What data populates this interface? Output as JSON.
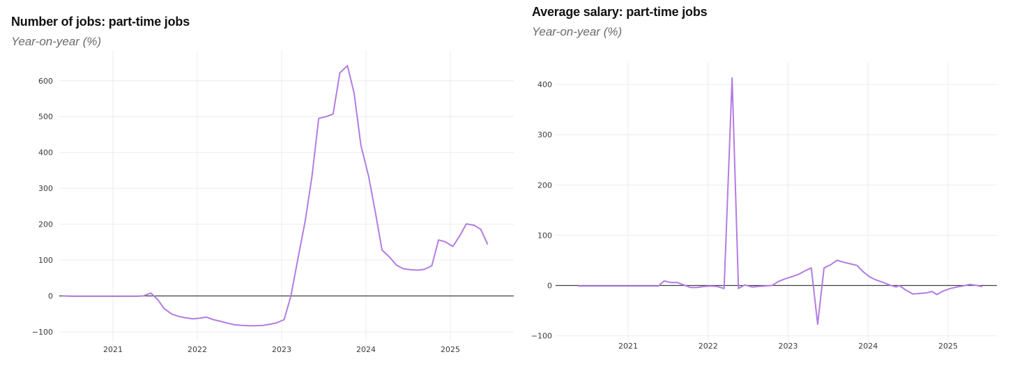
{
  "page": {
    "background": "#ffffff"
  },
  "style": {
    "grid_color": "#ececec",
    "zero_line_color": "#3f3f3f",
    "tick_label_color": "#3a3a3a",
    "title_color": "#121212",
    "subtitle_color": "#6b6b6b"
  },
  "chart_data": [
    {
      "type": "line",
      "title": "Number of jobs: part-time jobs",
      "subtitle": "Year-on-year (%)",
      "xlabel": "",
      "ylabel": "",
      "grid": true,
      "zero_line": true,
      "legend": "none",
      "line_color": "#b27ce2",
      "xlim": [
        2020.364,
        2025.752
      ],
      "ylim": [
        -127.3,
        685.1
      ],
      "x_axis": {
        "ticks": [
          {
            "v": 2021,
            "label": "2021"
          },
          {
            "v": 2022,
            "label": "2022"
          },
          {
            "v": 2023,
            "label": "2023"
          },
          {
            "v": 2024,
            "label": "2024"
          },
          {
            "v": 2025,
            "label": "2025"
          }
        ]
      },
      "y_axis": {
        "ticks": [
          {
            "v": 600,
            "label": "600"
          },
          {
            "v": 500,
            "label": "500"
          },
          {
            "v": 400,
            "label": "400"
          },
          {
            "v": 300,
            "label": "300"
          },
          {
            "v": 200,
            "label": "200"
          },
          {
            "v": 100,
            "label": "100"
          },
          {
            "v": 0,
            "label": "0"
          },
          {
            "v": -100,
            "label": "−100"
          }
        ]
      },
      "series": [
        {
          "name": "Number of part-time jobs, year-on-year %",
          "points": [
            [
              2020.41,
              0
            ],
            [
              2020.53,
              -1
            ],
            [
              2020.62,
              -1
            ],
            [
              2020.7,
              -1
            ],
            [
              2020.78,
              -1
            ],
            [
              2020.86,
              -1
            ],
            [
              2020.95,
              -1
            ],
            [
              2021.03,
              -1
            ],
            [
              2021.11,
              -1
            ],
            [
              2021.2,
              -1
            ],
            [
              2021.28,
              -1
            ],
            [
              2021.36,
              0
            ],
            [
              2021.45,
              8
            ],
            [
              2021.53,
              -10
            ],
            [
              2021.61,
              -36
            ],
            [
              2021.7,
              -51
            ],
            [
              2021.78,
              -57
            ],
            [
              2021.86,
              -61
            ],
            [
              2021.95,
              -64
            ],
            [
              2022.03,
              -62
            ],
            [
              2022.11,
              -59
            ],
            [
              2022.19,
              -66
            ],
            [
              2022.28,
              -71
            ],
            [
              2022.36,
              -76
            ],
            [
              2022.44,
              -80
            ],
            [
              2022.53,
              -82
            ],
            [
              2022.61,
              -83
            ],
            [
              2022.69,
              -83
            ],
            [
              2022.78,
              -82
            ],
            [
              2022.86,
              -79
            ],
            [
              2022.94,
              -75
            ],
            [
              2023.03,
              -66
            ],
            [
              2023.11,
              0
            ],
            [
              2023.19,
              100
            ],
            [
              2023.28,
              210
            ],
            [
              2023.36,
              333
            ],
            [
              2023.44,
              495
            ],
            [
              2023.53,
              500
            ],
            [
              2023.61,
              507
            ],
            [
              2023.69,
              622
            ],
            [
              2023.78,
              642
            ],
            [
              2023.86,
              565
            ],
            [
              2023.94,
              420
            ],
            [
              2024.03,
              335
            ],
            [
              2024.11,
              235
            ],
            [
              2024.19,
              128
            ],
            [
              2024.28,
              108
            ],
            [
              2024.36,
              86
            ],
            [
              2024.44,
              76
            ],
            [
              2024.53,
              73
            ],
            [
              2024.61,
              72
            ],
            [
              2024.69,
              74
            ],
            [
              2024.78,
              84
            ],
            [
              2024.86,
              156
            ],
            [
              2024.94,
              151
            ],
            [
              2025.03,
              138
            ],
            [
              2025.11,
              167
            ],
            [
              2025.19,
              201
            ],
            [
              2025.28,
              197
            ],
            [
              2025.36,
              186
            ],
            [
              2025.44,
              145
            ]
          ]
        }
      ]
    },
    {
      "type": "line",
      "title": "Average salary: part-time jobs",
      "subtitle": "Year-on-year (%)",
      "xlabel": "",
      "ylabel": "",
      "grid": true,
      "zero_line": true,
      "legend": "none",
      "line_color": "#b27ce2",
      "xlim": [
        2020.094,
        2025.61
      ],
      "ylim": [
        -132.5,
        446
      ],
      "x_axis": {
        "ticks": [
          {
            "v": 2021,
            "label": "2021"
          },
          {
            "v": 2022,
            "label": "2022"
          },
          {
            "v": 2023,
            "label": "2023"
          },
          {
            "v": 2024,
            "label": "2024"
          },
          {
            "v": 2025,
            "label": "2025"
          }
        ]
      },
      "y_axis": {
        "ticks": [
          {
            "v": 400,
            "label": "400"
          },
          {
            "v": 300,
            "label": "300"
          },
          {
            "v": 200,
            "label": "200"
          },
          {
            "v": 100,
            "label": "100"
          },
          {
            "v": 0,
            "label": "0"
          },
          {
            "v": -100,
            "label": "−100"
          }
        ]
      },
      "series": [
        {
          "name": "Average salary of part-time jobs, year-on-year %",
          "points": [
            [
              2020.38,
              -1
            ],
            [
              2020.5,
              -1
            ],
            [
              2020.6,
              -1
            ],
            [
              2020.7,
              -1
            ],
            [
              2020.8,
              -1
            ],
            [
              2020.9,
              -1
            ],
            [
              2021.0,
              -1
            ],
            [
              2021.1,
              -1
            ],
            [
              2021.2,
              -1
            ],
            [
              2021.3,
              -1
            ],
            [
              2021.38,
              -1
            ],
            [
              2021.45,
              9
            ],
            [
              2021.53,
              6
            ],
            [
              2021.61,
              6
            ],
            [
              2021.7,
              1
            ],
            [
              2021.78,
              -4
            ],
            [
              2021.86,
              -4
            ],
            [
              2021.95,
              -2
            ],
            [
              2022.03,
              -1
            ],
            [
              2022.11,
              -2
            ],
            [
              2022.2,
              -6
            ],
            [
              2022.3,
              413
            ],
            [
              2022.38,
              -6
            ],
            [
              2022.46,
              1
            ],
            [
              2022.55,
              -3
            ],
            [
              2022.63,
              -2
            ],
            [
              2022.71,
              -1
            ],
            [
              2022.8,
              0
            ],
            [
              2022.88,
              8
            ],
            [
              2022.96,
              13
            ],
            [
              2023.04,
              17
            ],
            [
              2023.13,
              22
            ],
            [
              2023.21,
              29
            ],
            [
              2023.29,
              35
            ],
            [
              2023.37,
              -77
            ],
            [
              2023.45,
              35
            ],
            [
              2023.53,
              41
            ],
            [
              2023.61,
              50
            ],
            [
              2023.7,
              46
            ],
            [
              2023.78,
              43
            ],
            [
              2023.86,
              40
            ],
            [
              2023.94,
              27
            ],
            [
              2024.02,
              17
            ],
            [
              2024.1,
              11
            ],
            [
              2024.19,
              6
            ],
            [
              2024.27,
              1
            ],
            [
              2024.35,
              -3
            ],
            [
              2024.39,
              0
            ],
            [
              2024.47,
              -9
            ],
            [
              2024.56,
              -17
            ],
            [
              2024.64,
              -16
            ],
            [
              2024.72,
              -15
            ],
            [
              2024.8,
              -12
            ],
            [
              2024.86,
              -18
            ],
            [
              2024.94,
              -11
            ],
            [
              2025.03,
              -6
            ],
            [
              2025.11,
              -3
            ],
            [
              2025.19,
              -1
            ],
            [
              2025.27,
              2
            ],
            [
              2025.36,
              0
            ],
            [
              2025.42,
              -2
            ]
          ]
        }
      ]
    }
  ]
}
